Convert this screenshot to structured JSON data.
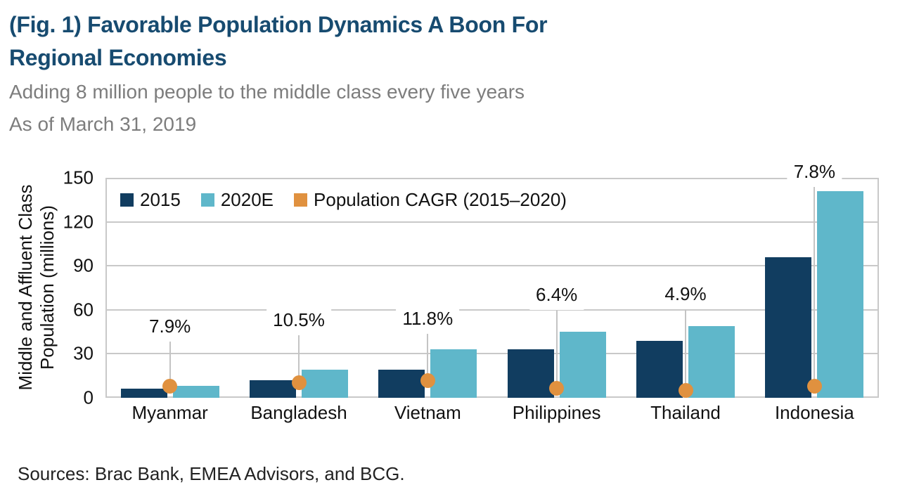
{
  "header": {
    "title_line1": "(Fig. 1) Favorable Population Dynamics A Boon For",
    "title_line2": "Regional Economies",
    "subtitle": "Adding 8 million people to the middle class every five years",
    "as_of_date": "As of March 31, 2019"
  },
  "chart_data": {
    "type": "bar",
    "categories": [
      "Myanmar",
      "Bangladesh",
      "Vietnam",
      "Philippines",
      "Thailand",
      "Indonesia"
    ],
    "series": [
      {
        "name": "2015",
        "type": "bar",
        "color": "#113D60",
        "values": [
          6,
          12,
          19,
          33,
          39,
          96
        ]
      },
      {
        "name": "2020E",
        "type": "bar",
        "color": "#5FB7CA",
        "values": [
          8,
          19,
          33,
          45,
          49,
          141
        ]
      },
      {
        "name": "Population CAGR (2015–2020)",
        "type": "point",
        "color": "#E0913F",
        "values": [
          7.9,
          10.5,
          11.8,
          6.4,
          4.9,
          7.8
        ],
        "labels": [
          "7.9%",
          "10.5%",
          "11.8%",
          "6.4%",
          "4.9%",
          "7.8%"
        ]
      }
    ],
    "ylabel": "Middle and Affluent Class Population (millions)",
    "ylabel_lines": [
      "Middle and Affluent Class",
      "Population (millions)"
    ],
    "yticks": [
      0,
      30,
      60,
      90,
      120,
      150
    ],
    "ylim": [
      0,
      150
    ],
    "grid": true,
    "legend_position": "top-left inside plot",
    "annotation_needle_top_heights": [
      38.5,
      42.5,
      43.5,
      60,
      60.5,
      144
    ]
  },
  "footer": {
    "sources_text": "Sources: Brac Bank, EMEA Advisors, and BCG."
  },
  "colors": {
    "title_navy": "#174B70",
    "subtitle_gray": "#7D7D7D",
    "bar_2015": "#113D60",
    "bar_2020e": "#5FB7CA",
    "cagr_orange": "#E0913F",
    "gridline": "#C9C9C9",
    "needle": "#C4C4C4",
    "axis_text": "#111111"
  }
}
